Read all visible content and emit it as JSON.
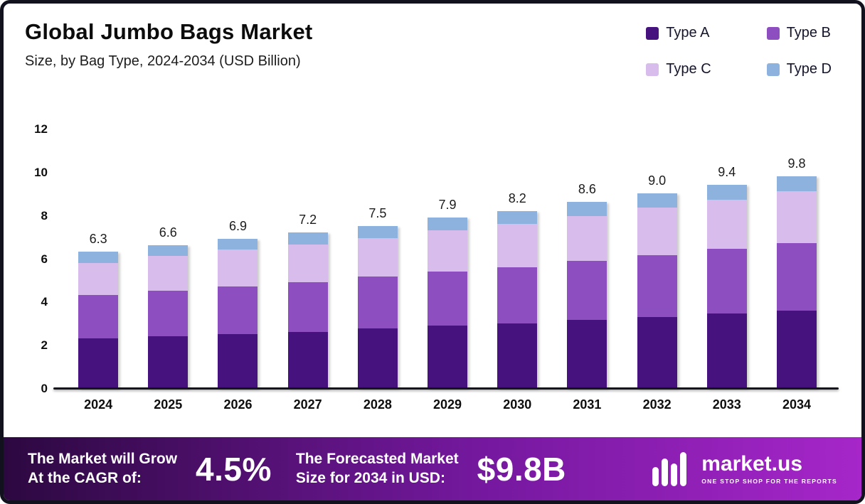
{
  "header": {
    "title": "Global Jumbo Bags Market",
    "subtitle": "Size, by Bag Type, 2024-2034 (USD Billion)"
  },
  "legend": {
    "items": [
      {
        "label": "Type A",
        "color": "#45127e"
      },
      {
        "label": "Type B",
        "color": "#8d4fc0"
      },
      {
        "label": "Type C",
        "color": "#d7bcec"
      },
      {
        "label": "Type D",
        "color": "#8eb2de"
      }
    ]
  },
  "chart_data": {
    "type": "bar",
    "stacked": true,
    "title": "Global Jumbo Bags Market Size, by Bag Type, 2024-2034 (USD Billion)",
    "categories": [
      "2024",
      "2025",
      "2026",
      "2027",
      "2028",
      "2029",
      "2030",
      "2031",
      "2032",
      "2033",
      "2034"
    ],
    "series": [
      {
        "name": "Type A",
        "color": "#45127e",
        "values": [
          2.3,
          2.4,
          2.5,
          2.6,
          2.75,
          2.9,
          3.0,
          3.15,
          3.3,
          3.45,
          3.6
        ]
      },
      {
        "name": "Type B",
        "color": "#8d4fc0",
        "values": [
          2.0,
          2.1,
          2.2,
          2.3,
          2.4,
          2.5,
          2.6,
          2.75,
          2.85,
          3.0,
          3.1
        ]
      },
      {
        "name": "Type C",
        "color": "#d7bcec",
        "values": [
          1.5,
          1.6,
          1.7,
          1.75,
          1.8,
          1.9,
          2.0,
          2.05,
          2.2,
          2.25,
          2.4
        ]
      },
      {
        "name": "Type D",
        "color": "#8eb2de",
        "values": [
          0.5,
          0.5,
          0.5,
          0.55,
          0.55,
          0.6,
          0.6,
          0.65,
          0.65,
          0.7,
          0.7
        ]
      }
    ],
    "totals": [
      "6.3",
      "6.6",
      "6.9",
      "7.2",
      "7.5",
      "7.9",
      "8.2",
      "8.6",
      "9.0",
      "9.4",
      "9.8"
    ],
    "xlabel": "",
    "ylabel": "",
    "ylim": [
      0,
      12
    ],
    "yticks": [
      0,
      2,
      4,
      6,
      8,
      10,
      12
    ],
    "grid": false,
    "legend_position": "top-right"
  },
  "footer": {
    "cagr_line1": "The Market will Grow",
    "cagr_line2": "At the CAGR of:",
    "cagr_value": "4.5%",
    "forecast_line1": "The Forecasted Market",
    "forecast_line2": "Size for 2034 in USD:",
    "forecast_value": "$9.8B",
    "brand": "market.us",
    "brand_tagline": "ONE STOP SHOP FOR THE REPORTS",
    "gradient": [
      "#2c0840",
      "#74189e",
      "#a626c9"
    ]
  }
}
